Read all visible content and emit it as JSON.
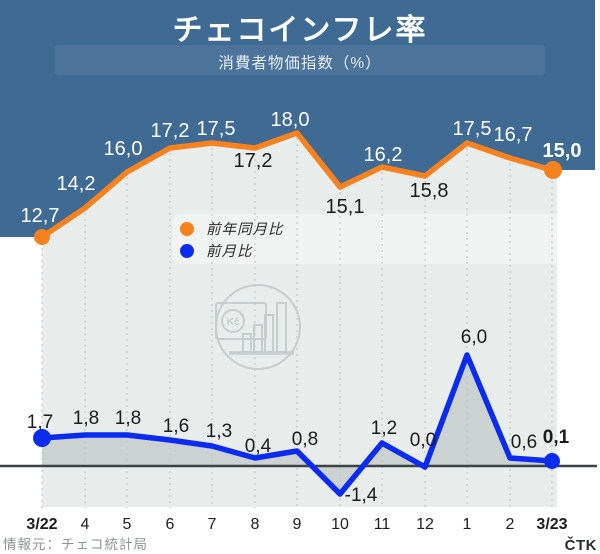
{
  "header": {
    "title": "チェコインフレ率",
    "subtitle": "消費者物価指数（%）"
  },
  "legend": {
    "items": [
      {
        "label": "前年同月比",
        "color": "#f6821f"
      },
      {
        "label": "前月比",
        "color": "#0b2cf0"
      }
    ]
  },
  "footer": {
    "source": "情報元：チェコ統計局",
    "credit": "ČTK"
  },
  "watermark": {
    "currency_label": "Kč"
  },
  "colors": {
    "header_blue": "#3f6a93",
    "chart_bg": "#e8ecea",
    "area_fill_gray": "#ccd2d1",
    "zero_line": "#3c4144",
    "gridline": "#bfc9c8",
    "dark_text": "#1c1c1e",
    "light_text": "#ffffff"
  },
  "chart_data": {
    "type": "line",
    "title": "チェコインフレ率",
    "subtitle": "消費者物価指数（%）",
    "categories": [
      "3/22",
      "4",
      "5",
      "6",
      "7",
      "8",
      "9",
      "10",
      "11",
      "12",
      "1",
      "2",
      "3/23"
    ],
    "series": [
      {
        "name": "前年同月比",
        "color": "#f6821f",
        "values": [
          12.7,
          14.2,
          16.0,
          17.2,
          17.5,
          17.2,
          18.0,
          15.1,
          16.2,
          15.8,
          17.5,
          16.7,
          15.0
        ]
      },
      {
        "name": "前月比",
        "color": "#0b2cf0",
        "values": [
          1.7,
          1.8,
          1.8,
          1.6,
          1.3,
          0.4,
          0.8,
          -1.4,
          1.2,
          0.0,
          6.0,
          0.6,
          0.1
        ]
      }
    ],
    "decimal_separator": ",",
    "emphasized_points": [
      "first",
      "last"
    ],
    "xlabel": "",
    "ylabel": "",
    "grid": "vertical-dashed",
    "legend_position": "center-left",
    "baseline_value_second_series": 0
  }
}
